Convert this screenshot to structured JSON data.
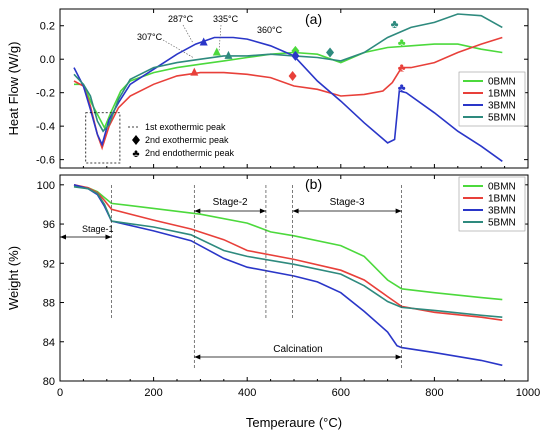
{
  "colors": {
    "0BMN": "#4cd93c",
    "1BMN": "#e8403a",
    "3BMN": "#2a36c8",
    "5BMN": "#2e8a7e"
  },
  "chart_data": [
    {
      "panel": "(a)",
      "type": "line",
      "ylabel": "Heat Flow (W/g)",
      "xlim": [
        0,
        1000
      ],
      "ylim": [
        -0.65,
        0.3
      ],
      "yticks": [
        0.2,
        0.0,
        -0.2,
        -0.4,
        -0.6
      ],
      "ytick_labels": [
        "0.2",
        "0.0",
        "-0.2",
        "-0.4",
        "-0.6"
      ],
      "legend": [
        "0BMN",
        "1BMN",
        "3BMN",
        "5BMN"
      ],
      "legend_position": "right",
      "annotations_temp": [
        "287°C",
        "307°C",
        "335°C",
        "360°C"
      ],
      "marker_legend": [
        {
          "symbol": "dotted-box",
          "label": "1st exothermic peak"
        },
        {
          "symbol": "diamond",
          "label": "2nd exothermic peak"
        },
        {
          "symbol": "club",
          "label": "2nd endothermic peak"
        }
      ],
      "series": [
        {
          "name": "0BMN",
          "points": [
            [
              30,
              -0.15
            ],
            [
              50,
              -0.15
            ],
            [
              65,
              -0.25
            ],
            [
              80,
              -0.33
            ],
            [
              95,
              -0.41
            ],
            [
              110,
              -0.31
            ],
            [
              130,
              -0.19
            ],
            [
              150,
              -0.13
            ],
            [
              200,
              -0.08
            ],
            [
              250,
              -0.05
            ],
            [
              300,
              -0.03
            ],
            [
              350,
              -0.01
            ],
            [
              400,
              0.01
            ],
            [
              450,
              0.03
            ],
            [
              500,
              0.04
            ],
            [
              550,
              0.03
            ],
            [
              600,
              -0.02
            ],
            [
              650,
              0.04
            ],
            [
              700,
              0.07
            ],
            [
              750,
              0.08
            ],
            [
              800,
              0.09
            ],
            [
              850,
              0.09
            ],
            [
              900,
              0.06
            ],
            [
              945,
              0.04
            ]
          ]
        },
        {
          "name": "1BMN",
          "points": [
            [
              30,
              -0.13
            ],
            [
              50,
              -0.16
            ],
            [
              65,
              -0.28
            ],
            [
              80,
              -0.45
            ],
            [
              90,
              -0.53
            ],
            [
              105,
              -0.4
            ],
            [
              125,
              -0.29
            ],
            [
              150,
              -0.22
            ],
            [
              200,
              -0.15
            ],
            [
              250,
              -0.1
            ],
            [
              300,
              -0.08
            ],
            [
              350,
              -0.08
            ],
            [
              400,
              -0.09
            ],
            [
              450,
              -0.11
            ],
            [
              500,
              -0.16
            ],
            [
              550,
              -0.18
            ],
            [
              600,
              -0.22
            ],
            [
              650,
              -0.21
            ],
            [
              690,
              -0.19
            ],
            [
              710,
              -0.14
            ],
            [
              730,
              -0.05
            ],
            [
              750,
              -0.05
            ],
            [
              800,
              -0.02
            ],
            [
              850,
              0.04
            ],
            [
              900,
              0.09
            ],
            [
              945,
              0.13
            ]
          ]
        },
        {
          "name": "3BMN",
          "points": [
            [
              30,
              -0.05
            ],
            [
              50,
              -0.16
            ],
            [
              65,
              -0.3
            ],
            [
              80,
              -0.45
            ],
            [
              90,
              -0.51
            ],
            [
              105,
              -0.36
            ],
            [
              125,
              -0.26
            ],
            [
              150,
              -0.15
            ],
            [
              200,
              -0.06
            ],
            [
              250,
              0.03
            ],
            [
              290,
              0.09
            ],
            [
              330,
              0.13
            ],
            [
              370,
              0.13
            ],
            [
              400,
              0.12
            ],
            [
              450,
              0.08
            ],
            [
              500,
              0.02
            ],
            [
              550,
              -0.13
            ],
            [
              600,
              -0.25
            ],
            [
              650,
              -0.38
            ],
            [
              700,
              -0.5
            ],
            [
              715,
              -0.48
            ],
            [
              725,
              -0.19
            ],
            [
              740,
              -0.2
            ],
            [
              800,
              -0.32
            ],
            [
              850,
              -0.43
            ],
            [
              900,
              -0.52
            ],
            [
              945,
              -0.61
            ]
          ]
        },
        {
          "name": "5BMN",
          "points": [
            [
              30,
              -0.09
            ],
            [
              50,
              -0.15
            ],
            [
              65,
              -0.22
            ],
            [
              80,
              -0.37
            ],
            [
              92,
              -0.43
            ],
            [
              105,
              -0.39
            ],
            [
              125,
              -0.24
            ],
            [
              150,
              -0.12
            ],
            [
              200,
              -0.05
            ],
            [
              250,
              -0.02
            ],
            [
              300,
              0.0
            ],
            [
              350,
              0.02
            ],
            [
              400,
              0.02
            ],
            [
              450,
              0.03
            ],
            [
              500,
              0.02
            ],
            [
              550,
              0.01
            ],
            [
              600,
              -0.01
            ],
            [
              650,
              0.04
            ],
            [
              700,
              0.13
            ],
            [
              750,
              0.19
            ],
            [
              800,
              0.22
            ],
            [
              850,
              0.27
            ],
            [
              900,
              0.26
            ],
            [
              945,
              0.19
            ]
          ]
        }
      ],
      "markers": [
        {
          "series": "0BMN",
          "type": "triangle",
          "x": 335,
          "y": 0.04
        },
        {
          "series": "1BMN",
          "type": "triangle",
          "x": 287,
          "y": -0.08
        },
        {
          "series": "3BMN",
          "type": "triangle",
          "x": 307,
          "y": 0.1
        },
        {
          "series": "5BMN",
          "type": "triangle",
          "x": 360,
          "y": 0.02
        },
        {
          "series": "0BMN",
          "type": "diamond",
          "x": 503,
          "y": 0.05
        },
        {
          "series": "1BMN",
          "type": "diamond",
          "x": 497,
          "y": -0.1
        },
        {
          "series": "3BMN",
          "type": "diamond",
          "x": 503,
          "y": 0.02
        },
        {
          "series": "5BMN",
          "type": "diamond",
          "x": 577,
          "y": 0.04
        },
        {
          "series": "0BMN",
          "type": "club",
          "x": 730,
          "y": 0.1
        },
        {
          "series": "1BMN",
          "type": "club",
          "x": 730,
          "y": -0.05
        },
        {
          "series": "3BMN",
          "type": "club",
          "x": 730,
          "y": -0.17
        },
        {
          "series": "5BMN",
          "type": "club",
          "x": 715,
          "y": 0.21
        }
      ]
    },
    {
      "panel": "(b)",
      "type": "line",
      "ylabel": "Weight (%)",
      "xlabel": "Temperaure (°C)",
      "xlim": [
        0,
        1000
      ],
      "ylim": [
        80,
        101
      ],
      "xticks": [
        0,
        200,
        400,
        600,
        800,
        1000
      ],
      "yticks": [
        100,
        96,
        92,
        88,
        84,
        80
      ],
      "legend": [
        "0BMN",
        "1BMN",
        "3BMN",
        "5BMN"
      ],
      "legend_position": "top-right",
      "stages": [
        {
          "label": "Stage-1",
          "x0": 30,
          "x1": 110
        },
        {
          "label": "Stage-2",
          "x0": 287,
          "x1": 440
        },
        {
          "label": "Stage-3",
          "x0": 497,
          "x1": 730
        }
      ],
      "calcination": {
        "label": "Calcination",
        "x0": 287,
        "x1": 730
      },
      "series": [
        {
          "name": "0BMN",
          "points": [
            [
              30,
              99.9
            ],
            [
              60,
              99.7
            ],
            [
              80,
              99.3
            ],
            [
              95,
              98.7
            ],
            [
              110,
              98.1
            ],
            [
              200,
              97.6
            ],
            [
              300,
              97.0
            ],
            [
              400,
              96.1
            ],
            [
              450,
              95.2
            ],
            [
              500,
              94.8
            ],
            [
              600,
              93.8
            ],
            [
              650,
              92.7
            ],
            [
              700,
              90.3
            ],
            [
              730,
              89.4
            ],
            [
              800,
              89.0
            ],
            [
              900,
              88.5
            ],
            [
              945,
              88.3
            ]
          ]
        },
        {
          "name": "1BMN",
          "points": [
            [
              30,
              100.0
            ],
            [
              60,
              99.7
            ],
            [
              80,
              99.2
            ],
            [
              95,
              98.4
            ],
            [
              110,
              97.5
            ],
            [
              200,
              96.4
            ],
            [
              280,
              95.5
            ],
            [
              350,
              94.4
            ],
            [
              400,
              93.3
            ],
            [
              500,
              92.4
            ],
            [
              600,
              91.3
            ],
            [
              650,
              90.3
            ],
            [
              700,
              88.6
            ],
            [
              730,
              87.6
            ],
            [
              800,
              87.0
            ],
            [
              900,
              86.5
            ],
            [
              945,
              86.2
            ]
          ]
        },
        {
          "name": "3BMN",
          "points": [
            [
              30,
              100.0
            ],
            [
              60,
              99.6
            ],
            [
              80,
              99.0
            ],
            [
              95,
              97.8
            ],
            [
              110,
              96.3
            ],
            [
              200,
              95.3
            ],
            [
              280,
              94.3
            ],
            [
              350,
              92.5
            ],
            [
              400,
              91.6
            ],
            [
              500,
              90.7
            ],
            [
              550,
              90.1
            ],
            [
              600,
              89.0
            ],
            [
              650,
              87.1
            ],
            [
              700,
              85.0
            ],
            [
              720,
              83.6
            ],
            [
              730,
              83.4
            ],
            [
              800,
              82.9
            ],
            [
              900,
              82.1
            ],
            [
              945,
              81.6
            ]
          ]
        },
        {
          "name": "5BMN",
          "points": [
            [
              30,
              99.8
            ],
            [
              60,
              99.6
            ],
            [
              80,
              99.1
            ],
            [
              95,
              98.0
            ],
            [
              110,
              96.3
            ],
            [
              200,
              95.7
            ],
            [
              280,
              94.9
            ],
            [
              350,
              93.3
            ],
            [
              400,
              92.7
            ],
            [
              500,
              91.9
            ],
            [
              600,
              90.9
            ],
            [
              650,
              89.7
            ],
            [
              700,
              88.1
            ],
            [
              730,
              87.5
            ],
            [
              800,
              87.2
            ],
            [
              900,
              86.7
            ],
            [
              945,
              86.5
            ]
          ]
        }
      ]
    }
  ]
}
